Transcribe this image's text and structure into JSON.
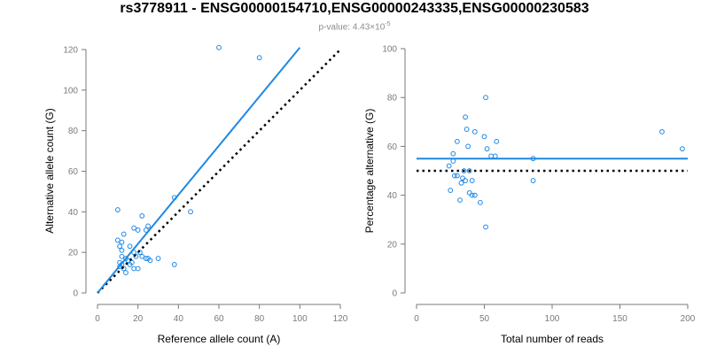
{
  "title": "rs3778911 - ENSG00000154710,ENSG00000243335,ENSG00000230583",
  "subtitle": {
    "prefix": "p-value: 4.43×10",
    "exponent": "-5"
  },
  "colors": {
    "fit": "#1e88e5",
    "points": "#1e88e5",
    "reference": "#000000"
  },
  "chart_data": [
    {
      "type": "scatter",
      "xlabel": "Reference allele count (A)",
      "ylabel": "Alternative allele count (G)",
      "xlim": [
        0,
        120
      ],
      "ylim": [
        0,
        120
      ],
      "xticks": [
        0,
        20,
        40,
        60,
        80,
        100,
        120
      ],
      "yticks": [
        0,
        20,
        40,
        60,
        80,
        100,
        120
      ],
      "points": [
        [
          60,
          121
        ],
        [
          80,
          116
        ],
        [
          38,
          47
        ],
        [
          46,
          40
        ],
        [
          10,
          41
        ],
        [
          38,
          14
        ],
        [
          22,
          38
        ],
        [
          10,
          26
        ],
        [
          12,
          25
        ],
        [
          11,
          23
        ],
        [
          16,
          23
        ],
        [
          13,
          29
        ],
        [
          18,
          32
        ],
        [
          20,
          31
        ],
        [
          24,
          31
        ],
        [
          25,
          33
        ],
        [
          12,
          21
        ],
        [
          18,
          20
        ],
        [
          14,
          17
        ],
        [
          11,
          15
        ],
        [
          12,
          18
        ],
        [
          15,
          16
        ],
        [
          19,
          18
        ],
        [
          21,
          20
        ],
        [
          22,
          18
        ],
        [
          24,
          17
        ],
        [
          26,
          16
        ],
        [
          30,
          17
        ],
        [
          25,
          17
        ],
        [
          11,
          13
        ],
        [
          13,
          12
        ],
        [
          14,
          10
        ],
        [
          16,
          14
        ],
        [
          18,
          12
        ],
        [
          20,
          12
        ],
        [
          17,
          15
        ],
        [
          12,
          14
        ]
      ],
      "fit_line": {
        "x": [
          0,
          100
        ],
        "y": [
          0,
          121
        ]
      },
      "reference_line": {
        "x": [
          0,
          120
        ],
        "y": [
          0,
          120
        ]
      }
    },
    {
      "type": "scatter",
      "xlabel": "Total number of reads",
      "ylabel": "Percentage alternative (G)",
      "xlim": [
        0,
        200
      ],
      "ylim": [
        0,
        100
      ],
      "xticks": [
        0,
        50,
        100,
        150,
        200
      ],
      "yticks": [
        0,
        20,
        40,
        60,
        80,
        100
      ],
      "points": [
        [
          51,
          80
        ],
        [
          36,
          72
        ],
        [
          181,
          66
        ],
        [
          196,
          59
        ],
        [
          43,
          66
        ],
        [
          37,
          67
        ],
        [
          59,
          62
        ],
        [
          30,
          62
        ],
        [
          50,
          64
        ],
        [
          38,
          60
        ],
        [
          52,
          59
        ],
        [
          55,
          56
        ],
        [
          27,
          57
        ],
        [
          58,
          56
        ],
        [
          86,
          55
        ],
        [
          24,
          52
        ],
        [
          27,
          54
        ],
        [
          30,
          48
        ],
        [
          34,
          47
        ],
        [
          39,
          50
        ],
        [
          41,
          46
        ],
        [
          33,
          45
        ],
        [
          36,
          46
        ],
        [
          86,
          46
        ],
        [
          25,
          42
        ],
        [
          39,
          41
        ],
        [
          43,
          40
        ],
        [
          41,
          40
        ],
        [
          47,
          37
        ],
        [
          32,
          38
        ],
        [
          51,
          27
        ],
        [
          28,
          48
        ],
        [
          35,
          50
        ]
      ],
      "fit_line": {
        "x": [
          0,
          200
        ],
        "y": [
          55,
          55
        ]
      },
      "reference_line": {
        "x": [
          0,
          200
        ],
        "y": [
          50,
          50
        ]
      }
    }
  ]
}
